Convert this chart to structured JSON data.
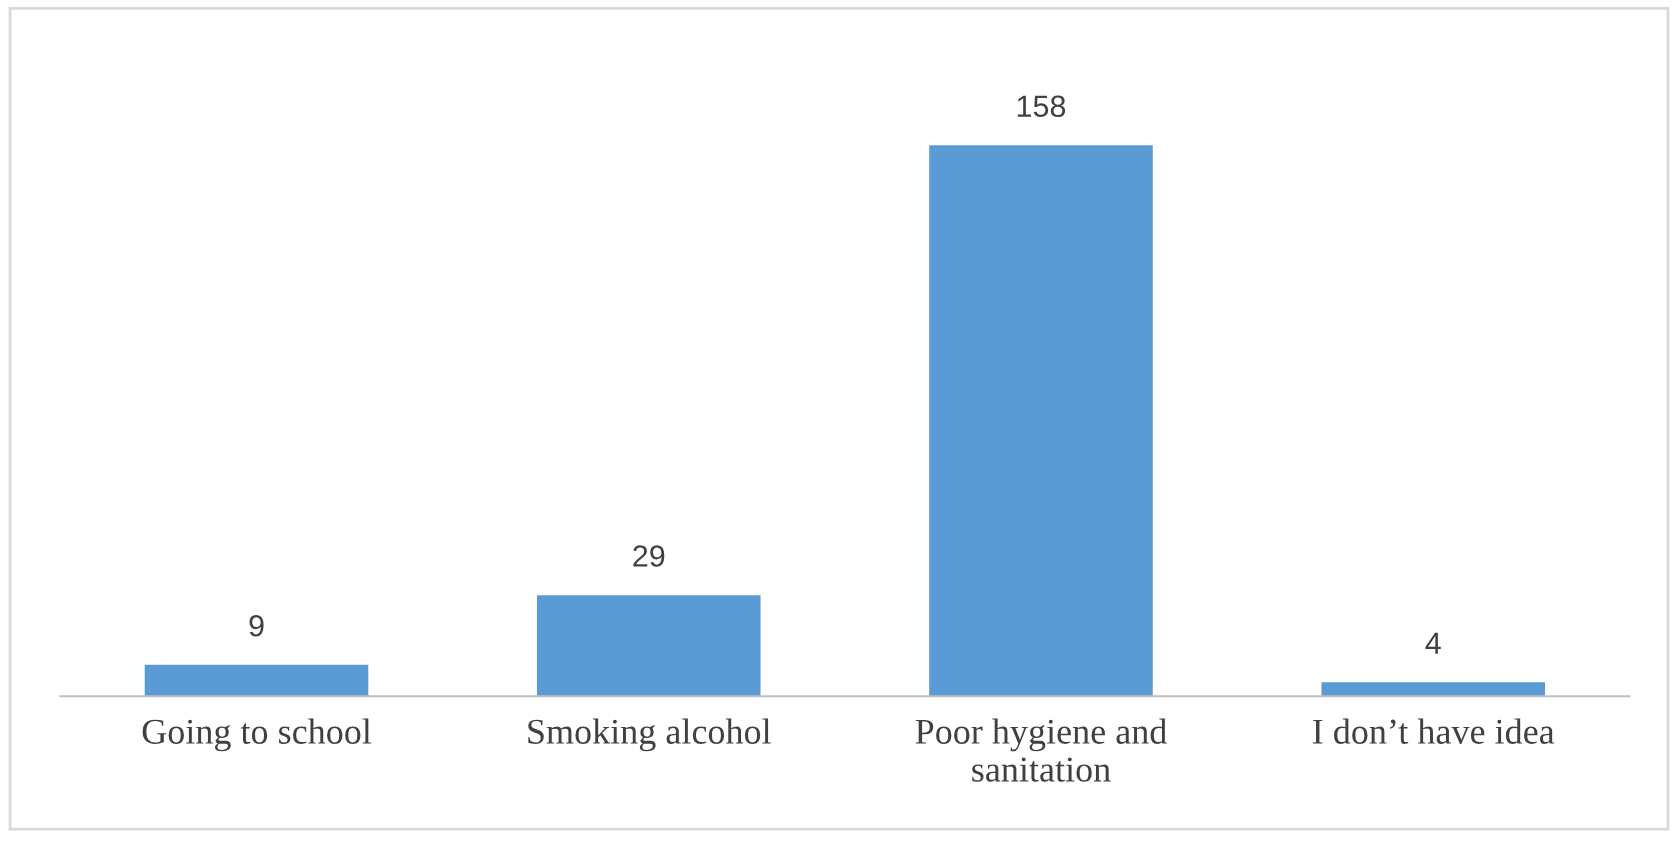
{
  "chart_data": {
    "type": "bar",
    "categories": [
      "Going to school",
      "Smoking alcohol",
      "Poor hygiene and\nsanitation",
      "I don’t have idea"
    ],
    "values": [
      9,
      29,
      158,
      4
    ],
    "color": "#5b9bd5",
    "data_labels": true,
    "grid": false,
    "legend": false
  }
}
